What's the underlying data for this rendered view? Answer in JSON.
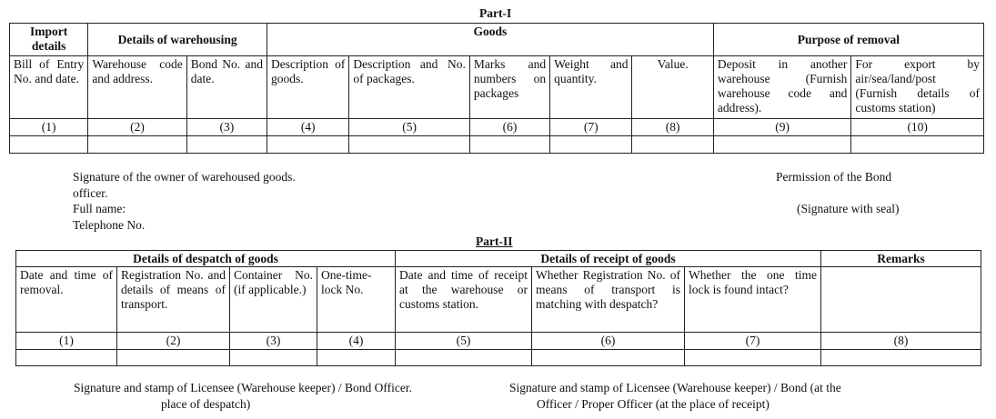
{
  "part1": {
    "title": "Part-I",
    "groups": [
      "Import details",
      "Details of warehousing",
      "Goods",
      "Purpose of removal"
    ],
    "columns": [
      "Bill of Entry No. and date.",
      "Warehouse code and address.",
      "Bond No. and date.",
      "Description of goods.",
      "Description and No. of packages.",
      "Marks and numbers on packages",
      "Weight and quantity.",
      "Value.",
      "Deposit in another warehouse (Furnish warehouse code and address).",
      "For export by air/sea/land/post (Furnish details of customs station)"
    ],
    "numbers": [
      "(1)",
      "(2)",
      "(3)",
      "(4)",
      "(5)",
      "(6)",
      "(7)",
      "(8)",
      "(9)",
      "(10)"
    ]
  },
  "signatures1": {
    "owner": "Signature of the owner of warehoused goods.",
    "permission": "Permission of the Bond",
    "officer": "officer.",
    "full_name": "Full name:",
    "seal": "(Signature with seal)",
    "telephone": "Telephone No."
  },
  "part2": {
    "title": "Part-II",
    "groups": [
      "Details of despatch of goods",
      "Details of receipt of goods",
      "Remarks"
    ],
    "columns": [
      "Date and time of removal.",
      "Registration No. and details of means of transport.",
      "Container No. (if applicable.)",
      "One-time-lock No.",
      "Date and time of receipt at the warehouse or customs station.",
      "Whether Registration No. of means of transport is matching with despatch?",
      "Whether the one time lock is found intact?",
      ""
    ],
    "numbers": [
      "(1)",
      "(2)",
      "(3)",
      "(4)",
      "(5)",
      "(6)",
      "(7)",
      "(8)"
    ]
  },
  "signatures2": {
    "left_line1": "Signature and stamp of Licensee (Warehouse keeper) / Bond Officer.",
    "left_line2": "place of despatch)",
    "right_line1": "Signature and stamp of Licensee (Warehouse keeper) / Bond (at the",
    "right_line2": "Officer / Proper Officer (at the place of receipt)"
  }
}
